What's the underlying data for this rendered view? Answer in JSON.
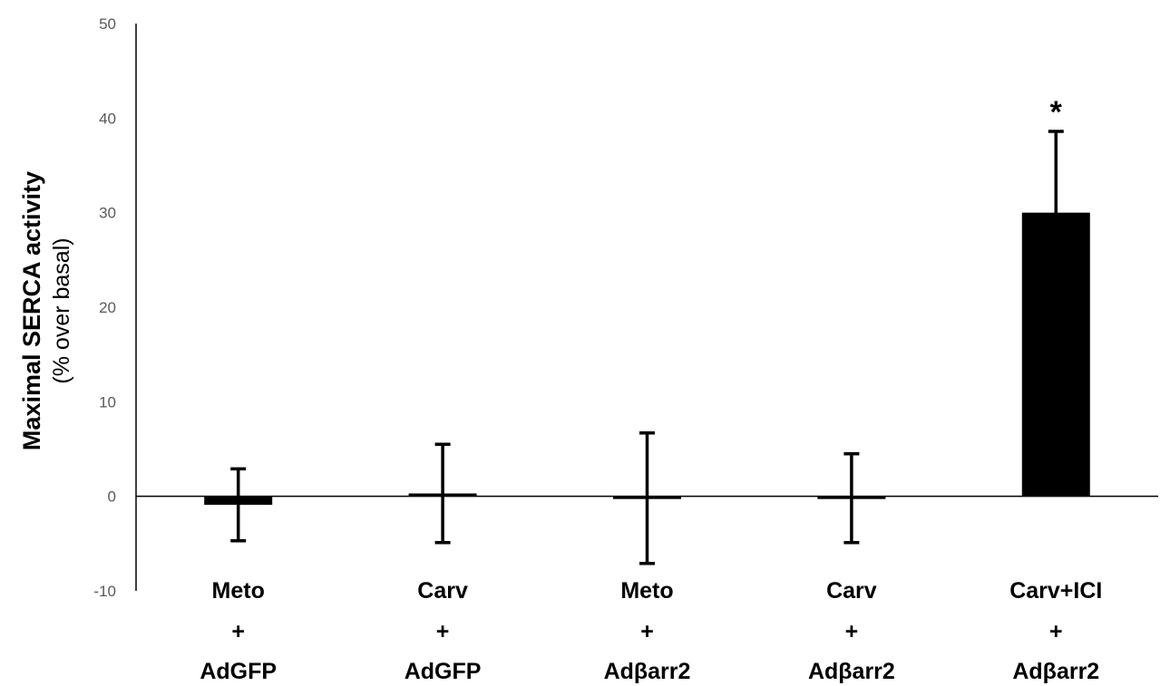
{
  "chart_data": {
    "type": "bar",
    "ylabel": "Maximal SERCA activity",
    "ylabel_sub": "(% over basal)",
    "ylim": [
      -10,
      50
    ],
    "yticks": [
      -10,
      0,
      10,
      20,
      30,
      40,
      50
    ],
    "ytick_labels": [
      "-10",
      "0",
      "10",
      "20",
      "30",
      "40",
      "50"
    ],
    "categories": [
      [
        "Meto",
        "+",
        "AdGFP"
      ],
      [
        "Carv",
        "+",
        "AdGFP"
      ],
      [
        "Meto",
        "+",
        "Adβarr2"
      ],
      [
        "Carv",
        "+",
        "Adβarr2"
      ],
      [
        "Carv+ICI",
        "+",
        "Adβarr2"
      ]
    ],
    "values": [
      -0.9,
      0.3,
      -0.2,
      -0.2,
      30.0
    ],
    "errors": [
      3.8,
      5.2,
      6.9,
      4.7,
      8.6
    ],
    "annotations": [
      "",
      "",
      "",
      "",
      "*"
    ],
    "bar_color": "#000000",
    "grid": false
  }
}
